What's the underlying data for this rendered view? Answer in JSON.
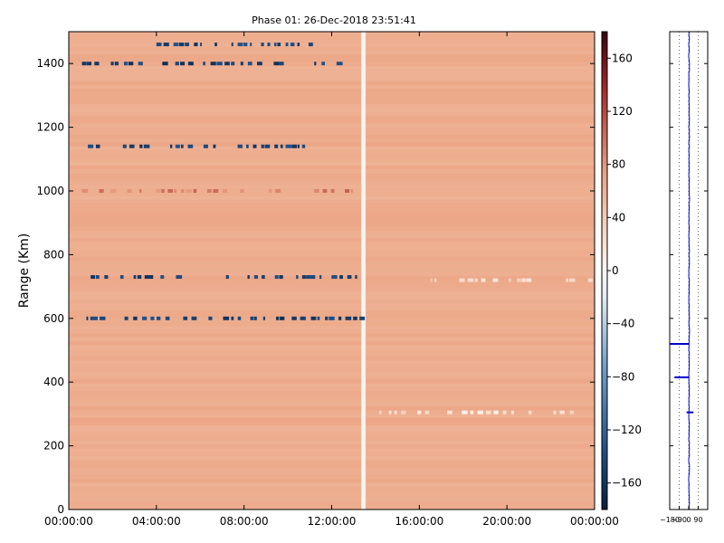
{
  "chart_data": [
    {
      "type": "heatmap",
      "title": "Phase 01: 26-Dec-2018 23:51:41",
      "xlabel": "",
      "ylabel": "Range (Km)",
      "xlim": [
        "00:00:00",
        "24:00:00"
      ],
      "ylim": [
        0,
        1500
      ],
      "x_ticks": [
        "00:00:00",
        "04:00:00",
        "08:00:00",
        "12:00:00",
        "16:00:00",
        "20:00:00",
        "00:00:00"
      ],
      "y_ticks": [
        0,
        200,
        400,
        600,
        800,
        1000,
        1200,
        1400
      ],
      "background_value": 64,
      "colorbar": {
        "range": [
          -180,
          180
        ],
        "ticks": [
          160,
          120,
          80,
          40,
          0,
          -40,
          -80,
          -120,
          -160
        ],
        "colormap": "RdBu_r"
      },
      "features": [
        {
          "kind": "gap",
          "x_start_h": 13.35,
          "x_end_h": 13.55,
          "y_start": 0,
          "y_end": 1500,
          "value": 5
        },
        {
          "kind": "row",
          "y": 600,
          "x_start_h": 0.3,
          "x_end_h": 13.3,
          "value": -150
        },
        {
          "kind": "row",
          "y": 730,
          "x_start_h": 1.0,
          "x_end_h": 13.2,
          "value": -150
        },
        {
          "kind": "row",
          "y": 1000,
          "x_start_h": 0.6,
          "x_end_h": 13.2,
          "value": 90
        },
        {
          "kind": "row",
          "y": 1140,
          "x_start_h": 0.6,
          "x_end_h": 11.0,
          "value": -150
        },
        {
          "kind": "row",
          "y": 1400,
          "x_start_h": 0.6,
          "x_end_h": 12.8,
          "value": -150
        },
        {
          "kind": "row",
          "y": 1460,
          "x_start_h": 3.4,
          "x_end_h": 11.0,
          "value": -150
        },
        {
          "kind": "row",
          "y": 305,
          "x_start_h": 13.6,
          "x_end_h": 24.0,
          "value": 20
        },
        {
          "kind": "row",
          "y": 720,
          "x_start_h": 16.5,
          "x_end_h": 24.0,
          "value": 30
        }
      ]
    },
    {
      "type": "line",
      "title": "",
      "ylim": [
        0,
        1500
      ],
      "xlim": [
        -180,
        180
      ],
      "x_ticks": [
        "-180",
        "-90",
        "0",
        "90"
      ],
      "spikes": [
        {
          "y": 520,
          "x_min": -180,
          "x_max": 0
        },
        {
          "y": 415,
          "x_min": -135,
          "x_max": 0
        },
        {
          "y": 305,
          "x_min": -20,
          "x_max": 45
        }
      ],
      "line_color": "#0000cc"
    }
  ]
}
